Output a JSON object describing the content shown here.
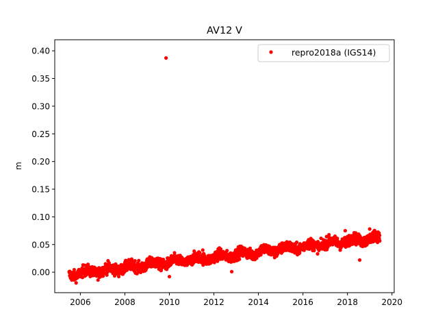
{
  "chart_data": {
    "type": "scatter",
    "title": "AV12 V",
    "xlabel": "",
    "ylabel": "m",
    "xlim": [
      2004.85,
      2020.1
    ],
    "ylim": [
      -0.037,
      0.42
    ],
    "x_ticks": [
      "2006",
      "2008",
      "2010",
      "2012",
      "2014",
      "2016",
      "2018",
      "2020"
    ],
    "y_ticks": [
      "0.00",
      "0.05",
      "0.10",
      "0.15",
      "0.20",
      "0.25",
      "0.30",
      "0.35",
      "0.40"
    ],
    "grid": false,
    "legend_position": "top-right",
    "series": [
      {
        "name": "repro2018a (IGS14)",
        "color": "#ff0000",
        "marker": "circle",
        "trend": {
          "x_start": 2005.5,
          "x_end": 2019.45,
          "y_start": -0.004,
          "y_end": 0.063,
          "scatter_amplitude": 0.009,
          "daily_samples": true
        },
        "outliers": [
          {
            "x": 2009.85,
            "y": 0.387
          },
          {
            "x": 2010.0,
            "y": -0.008
          },
          {
            "x": 2012.8,
            "y": 0.001
          },
          {
            "x": 2018.55,
            "y": 0.022
          },
          {
            "x": 2011.5,
            "y": 0.04
          },
          {
            "x": 2017.9,
            "y": 0.075
          },
          {
            "x": 2019.0,
            "y": 0.078
          }
        ]
      }
    ]
  }
}
